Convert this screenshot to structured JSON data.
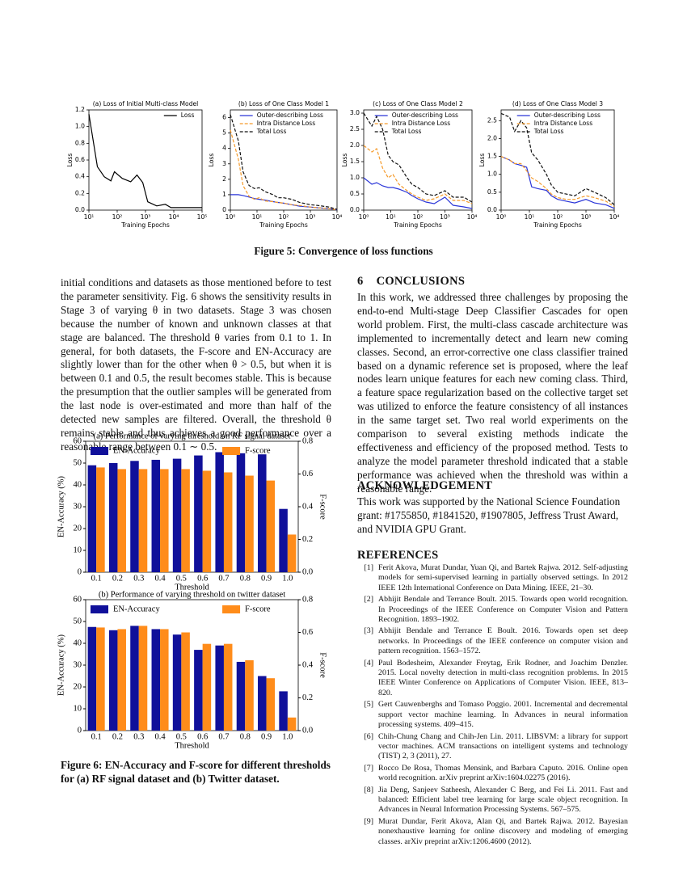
{
  "figure5_caption": "Figure 5: Convergence of loss functions",
  "left_paragraph": "initial conditions and datasets as those mentioned before to test the parameter sensitivity. Fig. 6 shows the sensitivity results in Stage 3 of varying θ in two datasets. Stage 3 was chosen because the number of known and unknown classes at that stage are balanced. The threshold θ varies from 0.1 to 1. In general, for both datasets, the F-score and EN-Accuracy are slightly lower than for the other when θ > 0.5, but when it is between 0.1 and 0.5, the result becomes stable. This is because the presumption that the outlier samples will be generated from the last node is over-estimated and more than half of the detected new samples are filtered. Overall, the threshold θ remains stable and thus achieves a good performance over a reasonable range between 0.1 ∼ 0.5.",
  "figure6_caption": "Figure 6: EN-Accuracy and F-score for different thresholds for (a) RF signal dataset and (b) Twitter dataset.",
  "conclusions": {
    "number": "6",
    "heading": "CONCLUSIONS",
    "text": "In this work, we addressed three challenges by proposing the end-to-end Multi-stage Deep Classifier Cascades for open world problem. First, the multi-class cascade architecture was implemented to incrementally detect and learn new coming classes. Second, an error-corrective one class classifier trained based on a dynamic reference set is proposed, where the leaf nodes learn unique features for each new coming class. Third, a feature space regularization based on the collective target set was utilized to enforce the feature consistency of all instances in the same target set. Two real world experiments on the comparison to several existing methods indicate the effectiveness and efficiency of the proposed method. Tests to analyze the model parameter threshold indicated that a stable performance was achieved when the threshold was within a reasonable range."
  },
  "acknowledgement": {
    "heading": "ACKNOWLEDGEMENT",
    "text": "This work was supported by the National Science Foundation grant: #1755850, #1841520, #1907805, Jeffress Trust Award, and NVIDIA GPU Grant."
  },
  "references": {
    "heading": "REFERENCES",
    "items": [
      {
        "number": "[1]",
        "text": "Ferit Akova, Murat Dundar, Yuan Qi, and Bartek Rajwa. 2012. Self-adjusting models for semi-supervised learning in partially observed settings. In 2012 IEEE 12th International Conference on Data Mining. IEEE, 21–30."
      },
      {
        "number": "[2]",
        "text": "Abhijit Bendale and Terrance Boult. 2015. Towards open world recognition. In Proceedings of the IEEE Conference on Computer Vision and Pattern Recognition. 1893–1902."
      },
      {
        "number": "[3]",
        "text": "Abhijit Bendale and Terrance E Boult. 2016. Towards open set deep networks. In Proceedings of the IEEE conference on computer vision and pattern recognition. 1563–1572."
      },
      {
        "number": "[4]",
        "text": "Paul Bodesheim, Alexander Freytag, Erik Rodner, and Joachim Denzler. 2015. Local novelty detection in multi-class recognition problems. In 2015 IEEE Winter Conference on Applications of Computer Vision. IEEE, 813–820."
      },
      {
        "number": "[5]",
        "text": "Gert Cauwenberghs and Tomaso Poggio. 2001. Incremental and decremental support vector machine learning. In Advances in neural information processing systems. 409–415."
      },
      {
        "number": "[6]",
        "text": "Chih-Chung Chang and Chih-Jen Lin. 2011. LIBSVM: a library for support vector machines. ACM transactions on intelligent systems and technology (TIST) 2, 3 (2011), 27."
      },
      {
        "number": "[7]",
        "text": "Rocco De Rosa, Thomas Mensink, and Barbara Caputo. 2016. Online open world recognition. arXiv preprint arXiv:1604.02275 (2016)."
      },
      {
        "number": "[8]",
        "text": "Jia Deng, Sanjeev Satheesh, Alexander C Berg, and Fei Li. 2011. Fast and balanced: Efficient label tree learning for large scale object recognition. In Advances in Neural Information Processing Systems. 567–575."
      },
      {
        "number": "[9]",
        "text": "Murat Dundar, Ferit Akova, Alan Qi, and Bartek Rajwa. 2012. Bayesian nonexhaustive learning for online discovery and modeling of emerging classes. arXiv preprint arXiv:1206.4600 (2012)."
      }
    ]
  },
  "chart_data": [
    {
      "type": "line",
      "title": "(a) Loss of Initial Multi-class Model",
      "x_label": "Training Epochs",
      "y_label": "Loss",
      "xscale": "log",
      "legend": "upper right",
      "x": [
        10,
        20,
        35,
        60,
        80,
        150,
        300,
        500,
        800,
        1200,
        2500,
        5000,
        8000,
        20000,
        100000
      ],
      "series": [
        {
          "name": "Loss",
          "color": "#000000",
          "style": "solid",
          "values": [
            1.15,
            0.52,
            0.4,
            0.35,
            0.46,
            0.38,
            0.34,
            0.42,
            0.33,
            0.1,
            0.05,
            0.07,
            0.03,
            0.03,
            0.03
          ]
        }
      ],
      "xlim": [
        10,
        100000
      ],
      "xticks": [
        {
          "value": 10,
          "label": "10¹"
        },
        {
          "value": 100,
          "label": "10²"
        },
        {
          "value": 1000,
          "label": "10³"
        },
        {
          "value": 10000,
          "label": "10⁴"
        },
        {
          "value": 100000,
          "label": "10⁵"
        }
      ],
      "ylim": [
        0,
        1.2
      ],
      "yticks": [
        {
          "value": 0,
          "label": "0.0"
        },
        {
          "value": 0.2,
          "label": "0.2"
        },
        {
          "value": 0.4,
          "label": "0.4"
        },
        {
          "value": 0.6,
          "label": "0.6"
        },
        {
          "value": 0.8,
          "label": "0.8"
        },
        {
          "value": 1,
          "label": "1.0"
        },
        {
          "value": 1.2,
          "label": "1.2"
        }
      ]
    },
    {
      "type": "line",
      "title": "(b) Loss of One Class Model 1",
      "x_label": "Training Epochs",
      "y_label": "Loss",
      "xscale": "log",
      "legend": "upper right",
      "x": [
        1,
        2,
        3,
        5,
        8,
        12,
        20,
        40,
        60,
        100,
        200,
        400,
        1000,
        2000,
        5000,
        10000
      ],
      "series": [
        {
          "name": "Outer-describing Loss",
          "color": "#2a35d8",
          "style": "solid",
          "values": [
            1.0,
            1.0,
            0.95,
            0.85,
            0.75,
            0.7,
            0.65,
            0.55,
            0.5,
            0.45,
            0.35,
            0.25,
            0.2,
            0.15,
            0.1,
            0.02
          ]
        },
        {
          "name": "Intra Distance Loss",
          "color": "#f59a2a",
          "style": "dashed",
          "values": [
            5.2,
            3.3,
            1.6,
            0.9,
            0.7,
            0.8,
            0.6,
            0.55,
            0.5,
            0.45,
            0.35,
            0.3,
            0.2,
            0.15,
            0.1,
            0.02
          ]
        },
        {
          "name": "Total Loss",
          "color": "#111111",
          "style": "dashed",
          "values": [
            6.2,
            4.5,
            2.5,
            1.6,
            1.4,
            1.45,
            1.2,
            1.0,
            0.8,
            0.8,
            0.7,
            0.5,
            0.35,
            0.3,
            0.2,
            0.05
          ]
        }
      ],
      "xlim": [
        1,
        10000
      ],
      "xticks": [
        {
          "value": 1,
          "label": "10⁰"
        },
        {
          "value": 10,
          "label": "10¹"
        },
        {
          "value": 100,
          "label": "10²"
        },
        {
          "value": 1000,
          "label": "10³"
        },
        {
          "value": 10000,
          "label": "10⁴"
        }
      ],
      "ylim": [
        0,
        6.5
      ],
      "yticks": [
        0,
        1,
        2,
        3,
        4,
        5,
        6
      ]
    },
    {
      "type": "line",
      "title": "(c) Loss of One Class Model 2",
      "x_label": "Training Epochs",
      "y_label": "Loss",
      "xscale": "log",
      "legend": "upper right",
      "x": [
        1,
        2,
        3,
        5,
        8,
        12,
        20,
        40,
        60,
        100,
        200,
        400,
        1000,
        2000,
        5000,
        10000
      ],
      "series": [
        {
          "name": "Outer-describing Loss",
          "color": "#2a35d8",
          "style": "solid",
          "values": [
            1.0,
            0.8,
            0.85,
            0.75,
            0.7,
            0.7,
            0.65,
            0.55,
            0.45,
            0.35,
            0.25,
            0.2,
            0.4,
            0.15,
            0.1,
            0.05
          ]
        },
        {
          "name": "Intra Distance Loss",
          "color": "#f59a2a",
          "style": "dashed",
          "values": [
            2.0,
            1.8,
            1.9,
            1.3,
            1.0,
            1.1,
            0.8,
            0.6,
            0.5,
            0.4,
            0.3,
            0.35,
            0.5,
            0.3,
            0.3,
            0.2
          ]
        },
        {
          "name": "Total Loss",
          "color": "#111111",
          "style": "dashed",
          "values": [
            3.0,
            2.6,
            2.9,
            2.5,
            1.7,
            1.5,
            1.4,
            1.0,
            0.8,
            0.7,
            0.5,
            0.45,
            0.6,
            0.4,
            0.4,
            0.25
          ]
        }
      ],
      "xlim": [
        1,
        10000
      ],
      "xticks": [
        {
          "value": 1,
          "label": "10⁰"
        },
        {
          "value": 10,
          "label": "10¹"
        },
        {
          "value": 100,
          "label": "10²"
        },
        {
          "value": 1000,
          "label": "10³"
        },
        {
          "value": 10000,
          "label": "10⁴"
        }
      ],
      "ylim": [
        0,
        3.1
      ],
      "yticks": [
        {
          "value": 0,
          "label": "0.0"
        },
        {
          "value": 0.5,
          "label": "0.5"
        },
        {
          "value": 1,
          "label": "1.0"
        },
        {
          "value": 1.5,
          "label": "1.5"
        },
        {
          "value": 2,
          "label": "2.0"
        },
        {
          "value": 2.5,
          "label": "2.5"
        },
        {
          "value": 3,
          "label": "3.0"
        }
      ]
    },
    {
      "type": "line",
      "title": "(d) Loss of One Class Model 3",
      "x_label": "Training Epochs",
      "y_label": "Loss",
      "xscale": "log",
      "legend": "upper right",
      "x": [
        1,
        2,
        3,
        5,
        8,
        12,
        20,
        40,
        60,
        100,
        200,
        400,
        1000,
        2000,
        5000,
        10000
      ],
      "series": [
        {
          "name": "Outer-describing Loss",
          "color": "#2a35d8",
          "style": "solid",
          "values": [
            1.5,
            1.4,
            1.3,
            1.25,
            1.2,
            0.65,
            0.6,
            0.55,
            0.4,
            0.3,
            0.25,
            0.2,
            0.3,
            0.2,
            0.15,
            0.05
          ]
        },
        {
          "name": "Intra Distance Loss",
          "color": "#f59a2a",
          "style": "dashed",
          "values": [
            1.5,
            1.4,
            1.3,
            1.3,
            1.1,
            0.9,
            0.8,
            0.6,
            0.45,
            0.35,
            0.3,
            0.3,
            0.4,
            0.35,
            0.25,
            0.1
          ]
        },
        {
          "name": "Total Loss",
          "color": "#111111",
          "style": "dashed",
          "values": [
            2.7,
            2.6,
            2.2,
            2.5,
            2.3,
            1.6,
            1.4,
            1.0,
            0.7,
            0.5,
            0.45,
            0.4,
            0.6,
            0.5,
            0.35,
            0.15
          ]
        }
      ],
      "xlim": [
        1,
        10000
      ],
      "xticks": [
        {
          "value": 1,
          "label": "10⁰"
        },
        {
          "value": 10,
          "label": "10¹"
        },
        {
          "value": 100,
          "label": "10²"
        },
        {
          "value": 1000,
          "label": "10³"
        },
        {
          "value": 10000,
          "label": "10⁴"
        }
      ],
      "ylim": [
        0,
        2.8
      ],
      "yticks": [
        {
          "value": 0,
          "label": "0.0"
        },
        {
          "value": 0.5,
          "label": "0.5"
        },
        {
          "value": 1,
          "label": "1.0"
        },
        {
          "value": 1.5,
          "label": "1.5"
        },
        {
          "value": 2,
          "label": "2.0"
        },
        {
          "value": 2.5,
          "label": "2.5"
        }
      ]
    },
    {
      "type": "bar",
      "title": "(a) Performance of varying threshold on RF signal dataset",
      "x_label": "Threshold",
      "y_label": "EN-Accuracy (%)",
      "y2_label": "F-score",
      "legend": "upper center",
      "categories": [
        "0.1",
        "0.2",
        "0.3",
        "0.4",
        "0.5",
        "0.6",
        "0.7",
        "0.8",
        "0.9",
        "1.0"
      ],
      "series": [
        {
          "name": "EN-Accuracy",
          "color": "#10109a",
          "axis": "y",
          "values": [
            49,
            50,
            51,
            51.5,
            52,
            53.5,
            55,
            54.5,
            54,
            29
          ]
        },
        {
          "name": "F-score",
          "color": "#ff8c1a",
          "axis": "y2",
          "values": [
            0.64,
            0.63,
            0.63,
            0.63,
            0.63,
            0.62,
            0.61,
            0.59,
            0.56,
            0.23
          ]
        }
      ],
      "ylim": [
        0,
        60
      ],
      "yticks": [
        0,
        10,
        20,
        30,
        40,
        50,
        60
      ],
      "y2lim": [
        0,
        0.8
      ],
      "y2ticks": [
        {
          "value": 0,
          "label": "0.0"
        },
        0.2,
        0.4,
        0.6,
        0.8
      ]
    },
    {
      "type": "bar",
      "title": "(b) Performance of varying threshold on twitter dataset",
      "x_label": "Threshold",
      "y_label": "EN-Accuracy (%)",
      "y2_label": "F-score",
      "legend": "upper center",
      "categories": [
        "0.1",
        "0.2",
        "0.3",
        "0.4",
        "0.5",
        "0.6",
        "0.7",
        "0.8",
        "0.9",
        "1.0"
      ],
      "series": [
        {
          "name": "EN-Accuracy",
          "color": "#10109a",
          "axis": "y",
          "values": [
            47.5,
            46,
            48,
            46.5,
            44,
            37,
            39,
            31.5,
            25,
            18
          ]
        },
        {
          "name": "F-score",
          "color": "#ff8c1a",
          "axis": "y2",
          "values": [
            0.63,
            0.62,
            0.64,
            0.62,
            0.6,
            0.53,
            0.53,
            0.43,
            0.32,
            0.08
          ]
        }
      ],
      "ylim": [
        0,
        60
      ],
      "yticks": [
        0,
        10,
        20,
        30,
        40,
        50,
        60
      ],
      "y2lim": [
        0,
        0.8
      ],
      "y2ticks": [
        {
          "value": 0,
          "label": "0.0"
        },
        0.2,
        0.4,
        0.6,
        0.8
      ]
    }
  ]
}
